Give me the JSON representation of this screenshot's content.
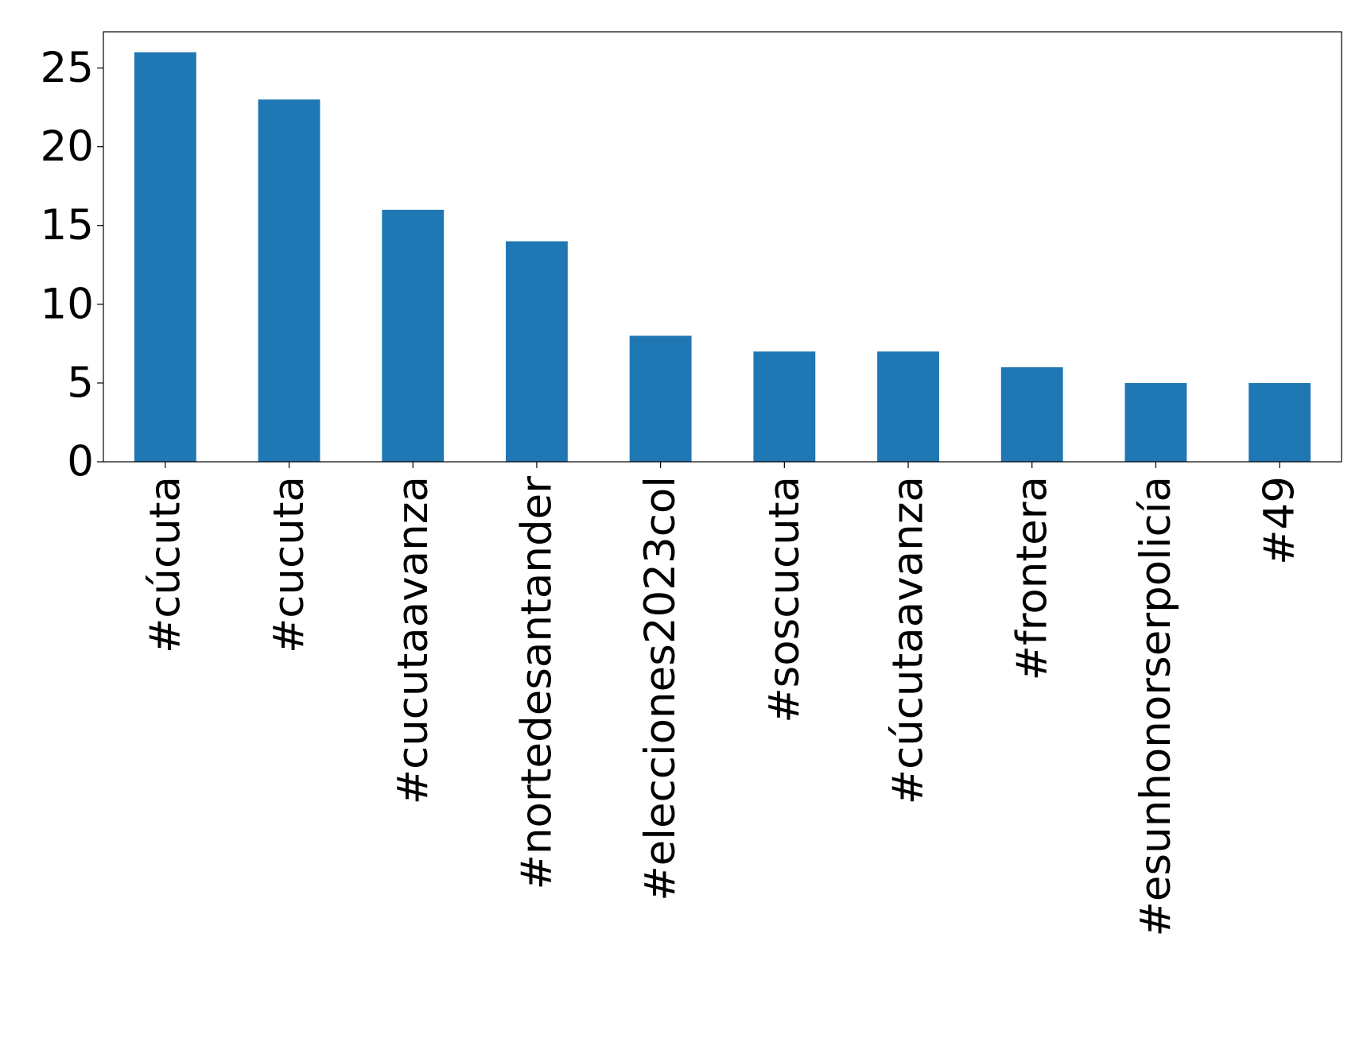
{
  "chart_data": {
    "type": "bar",
    "categories": [
      "#cúcuta",
      "#cucuta",
      "#cucutaavanza",
      "#nortedesantander",
      "#elecciones2023col",
      "#soscucuta",
      "#cúcutaavanza",
      "#frontera",
      "#esunhonorserpolicía",
      "#49"
    ],
    "values": [
      26,
      23,
      16,
      14,
      8,
      7,
      7,
      6,
      5,
      5
    ],
    "color": "#1f77b4",
    "ylim": [
      0,
      27.3
    ],
    "yticks": [
      0,
      5,
      10,
      15,
      20,
      25
    ],
    "grid": false
  }
}
